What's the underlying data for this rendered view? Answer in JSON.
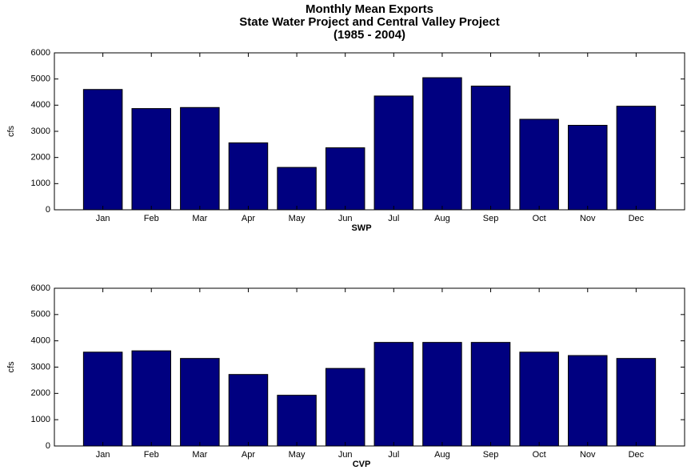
{
  "chart_data": [
    {
      "type": "bar",
      "title": [
        "Monthly Mean Exports",
        "State Water Project and Central Valley Project",
        "(1985 - 2004)"
      ],
      "xlabel": "SWP",
      "ylabel": "cfs",
      "categories": [
        "Jan",
        "Feb",
        "Mar",
        "Apr",
        "May",
        "Jun",
        "Jul",
        "Aug",
        "Sep",
        "Oct",
        "Nov",
        "Dec"
      ],
      "values": [
        4600,
        3870,
        3910,
        2560,
        1620,
        2370,
        4350,
        5050,
        4730,
        3460,
        3230,
        3960
      ],
      "color": "#000080",
      "ylim": [
        0,
        6000
      ],
      "yticks": [
        0,
        1000,
        2000,
        3000,
        4000,
        5000,
        6000
      ]
    },
    {
      "type": "bar",
      "xlabel": "CVP",
      "ylabel": "cfs",
      "categories": [
        "Jan",
        "Feb",
        "Mar",
        "Apr",
        "May",
        "Jun",
        "Jul",
        "Aug",
        "Sep",
        "Oct",
        "Nov",
        "Dec"
      ],
      "values": [
        3570,
        3620,
        3330,
        2720,
        1930,
        2950,
        3940,
        3940,
        3940,
        3570,
        3440,
        3330
      ],
      "color": "#000080",
      "ylim": [
        0,
        6000
      ],
      "yticks": [
        0,
        1000,
        2000,
        3000,
        4000,
        5000,
        6000
      ]
    }
  ]
}
